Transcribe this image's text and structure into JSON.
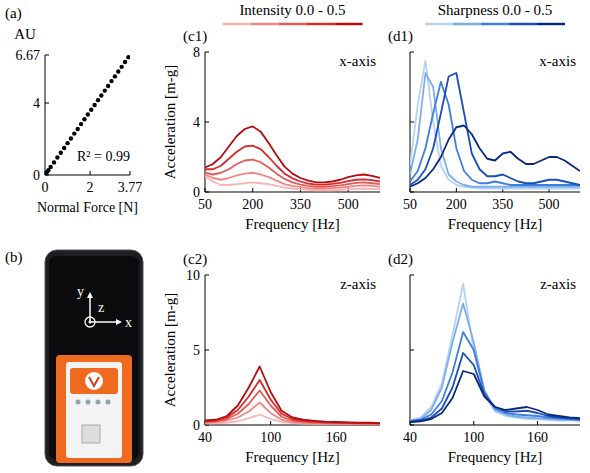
{
  "chart_data": [
    {
      "type": "scatter",
      "panel_label": "(a)",
      "x_label": "Normal Force [N]",
      "y_label": "AU",
      "annotations": [
        "R² = 0.99"
      ],
      "marker": "circle",
      "color": "#000000",
      "x": [
        0.02,
        0.08,
        0.15,
        0.25,
        0.4,
        0.55,
        0.7,
        0.85,
        1.0,
        1.15,
        1.3,
        1.45,
        1.6,
        1.75,
        1.9,
        2.05,
        2.2,
        2.35,
        2.5,
        2.65,
        2.8,
        2.95,
        3.1,
        3.25,
        3.4,
        3.55,
        3.7
      ],
      "values": [
        0.05,
        0.15,
        0.27,
        0.45,
        0.7,
        0.97,
        1.24,
        1.5,
        1.77,
        2.03,
        2.3,
        2.56,
        2.83,
        3.1,
        3.36,
        3.63,
        3.89,
        4.16,
        4.42,
        4.69,
        4.95,
        5.22,
        5.48,
        5.75,
        6.01,
        6.28,
        6.55
      ],
      "xlim": [
        0,
        3.77
      ],
      "xticks": [
        0,
        2,
        3.77
      ],
      "ylim": [
        0,
        6.67
      ],
      "yticks": [
        0,
        4,
        6.67
      ]
    },
    {
      "type": "line",
      "panel_label": "(c1)",
      "subtitle": "Intensity 0.0 - 0.5",
      "title": "x-axis",
      "x_label": "Frequency [Hz]",
      "y_label": "Acceleration [m-g]",
      "x": [
        50,
        75,
        100,
        125,
        150,
        175,
        200,
        225,
        250,
        275,
        300,
        325,
        350,
        375,
        400,
        425,
        450,
        475,
        500,
        525,
        550,
        575,
        600
      ],
      "series": [
        {
          "color": "#f7b4b4",
          "values": [
            0.9,
            0.6,
            0.4,
            0.4,
            0.45,
            0.5,
            0.55,
            0.5,
            0.45,
            0.35,
            0.25,
            0.2,
            0.15,
            0.12,
            0.1,
            0.1,
            0.1,
            0.12,
            0.15,
            0.18,
            0.2,
            0.18,
            0.15
          ]
        },
        {
          "color": "#f08888",
          "values": [
            1.0,
            0.8,
            0.7,
            0.8,
            0.95,
            1.05,
            1.1,
            1.0,
            0.85,
            0.65,
            0.45,
            0.35,
            0.28,
            0.22,
            0.2,
            0.2,
            0.22,
            0.25,
            0.3,
            0.35,
            0.38,
            0.35,
            0.3
          ]
        },
        {
          "color": "#e65a5a",
          "values": [
            1.1,
            1.0,
            1.1,
            1.3,
            1.6,
            1.8,
            1.85,
            1.7,
            1.4,
            1.05,
            0.75,
            0.55,
            0.42,
            0.35,
            0.3,
            0.3,
            0.33,
            0.38,
            0.45,
            0.52,
            0.55,
            0.5,
            0.45
          ]
        },
        {
          "color": "#d42c2c",
          "values": [
            1.3,
            1.3,
            1.5,
            1.9,
            2.3,
            2.6,
            2.65,
            2.45,
            2.0,
            1.5,
            1.05,
            0.78,
            0.6,
            0.48,
            0.42,
            0.42,
            0.46,
            0.52,
            0.62,
            0.7,
            0.72,
            0.68,
            0.6
          ]
        },
        {
          "color": "#b40c10",
          "values": [
            1.4,
            1.6,
            2.0,
            2.6,
            3.2,
            3.6,
            3.75,
            3.45,
            2.8,
            2.1,
            1.45,
            1.05,
            0.8,
            0.65,
            0.55,
            0.55,
            0.6,
            0.7,
            0.85,
            0.95,
            1.0,
            0.92,
            0.8
          ]
        }
      ],
      "xlim": [
        50,
        600
      ],
      "xticks": [
        50,
        200,
        350,
        500
      ],
      "ylim": [
        0,
        8
      ],
      "yticks": [
        0,
        4,
        8
      ]
    },
    {
      "type": "line",
      "panel_label": "(c2)",
      "title": "z-axis",
      "x_label": "Frequency [Hz]",
      "y_label": "Acceleration [m-g]",
      "x": [
        40,
        50,
        60,
        70,
        80,
        90,
        100,
        110,
        120,
        130,
        140,
        150,
        160,
        170,
        180,
        190,
        200
      ],
      "series": [
        {
          "color": "#f7b4b4",
          "values": [
            0.1,
            0.12,
            0.15,
            0.25,
            0.45,
            0.7,
            0.4,
            0.2,
            0.12,
            0.1,
            0.08,
            0.08,
            0.07,
            0.07,
            0.06,
            0.06,
            0.05
          ]
        },
        {
          "color": "#f08888",
          "values": [
            0.15,
            0.2,
            0.3,
            0.5,
            0.9,
            1.5,
            0.8,
            0.35,
            0.2,
            0.15,
            0.12,
            0.1,
            0.1,
            0.09,
            0.08,
            0.08,
            0.07
          ]
        },
        {
          "color": "#e65a5a",
          "values": [
            0.2,
            0.25,
            0.4,
            0.75,
            1.4,
            2.3,
            1.3,
            0.55,
            0.3,
            0.2,
            0.16,
            0.14,
            0.13,
            0.12,
            0.1,
            0.1,
            0.09
          ]
        },
        {
          "color": "#d42c2c",
          "values": [
            0.25,
            0.3,
            0.5,
            1.0,
            1.9,
            3.0,
            1.7,
            0.75,
            0.4,
            0.28,
            0.22,
            0.18,
            0.16,
            0.15,
            0.13,
            0.12,
            0.11
          ]
        },
        {
          "color": "#b40c10",
          "values": [
            0.3,
            0.35,
            0.6,
            1.3,
            2.5,
            3.9,
            2.2,
            0.95,
            0.5,
            0.35,
            0.28,
            0.22,
            0.2,
            0.18,
            0.16,
            0.15,
            0.13
          ]
        }
      ],
      "xlim": [
        40,
        200
      ],
      "xticks": [
        40,
        100,
        160
      ],
      "ylim": [
        0,
        10
      ],
      "yticks": [
        0,
        5,
        10
      ]
    },
    {
      "type": "line",
      "panel_label": "(d1)",
      "subtitle": "Sharpness 0.0 - 0.5",
      "title": "x-axis",
      "x_label": "Frequency [Hz]",
      "tick_labels": "x",
      "x": [
        50,
        75,
        100,
        125,
        150,
        175,
        200,
        225,
        250,
        275,
        300,
        325,
        350,
        375,
        400,
        425,
        450,
        475,
        500,
        525,
        550,
        575,
        600
      ],
      "series": [
        {
          "color": "#b8d2f2",
          "values": [
            1.5,
            5.0,
            7.5,
            4.0,
            1.5,
            0.7,
            0.4,
            0.3,
            0.25,
            0.2,
            0.2,
            0.2,
            0.2,
            0.2,
            0.2,
            0.2,
            0.2,
            0.2,
            0.2,
            0.2,
            0.2,
            0.2,
            0.2
          ]
        },
        {
          "color": "#7eaeea",
          "values": [
            1.0,
            3.0,
            6.8,
            6.0,
            2.5,
            1.0,
            0.6,
            0.4,
            0.3,
            0.3,
            0.3,
            0.3,
            0.3,
            0.3,
            0.3,
            0.3,
            0.3,
            0.3,
            0.3,
            0.3,
            0.3,
            0.3,
            0.3
          ]
        },
        {
          "color": "#3e7edc",
          "values": [
            0.6,
            1.2,
            2.5,
            4.5,
            6.3,
            5.0,
            2.5,
            1.2,
            0.7,
            0.5,
            0.5,
            0.6,
            0.5,
            0.4,
            0.4,
            0.4,
            0.4,
            0.4,
            0.4,
            0.4,
            0.4,
            0.4,
            0.4
          ]
        },
        {
          "color": "#1a4eb8",
          "values": [
            0.4,
            0.7,
            1.3,
            2.5,
            4.5,
            6.6,
            6.8,
            4.5,
            2.2,
            1.3,
            0.9,
            0.9,
            1.0,
            0.8,
            0.6,
            0.5,
            0.5,
            0.6,
            0.7,
            0.7,
            0.6,
            0.5,
            0.4
          ]
        },
        {
          "color": "#0a2a80",
          "values": [
            0.3,
            0.5,
            0.8,
            1.3,
            2.0,
            3.0,
            3.7,
            3.8,
            3.3,
            2.5,
            1.9,
            1.8,
            2.2,
            2.3,
            1.9,
            1.6,
            1.6,
            1.8,
            2.0,
            2.0,
            1.8,
            1.5,
            1.2
          ]
        }
      ],
      "xlim": [
        50,
        600
      ],
      "xticks": [
        50,
        200,
        350,
        500
      ],
      "ylim": [
        0,
        8
      ],
      "yticks": [
        0,
        4,
        8
      ]
    },
    {
      "type": "line",
      "panel_label": "(d2)",
      "title": "z-axis",
      "x_label": "Frequency [Hz]",
      "tick_labels": "x",
      "x": [
        40,
        50,
        60,
        70,
        80,
        90,
        100,
        110,
        120,
        130,
        140,
        150,
        160,
        170,
        180,
        190,
        200
      ],
      "series": [
        {
          "color": "#b8d2f2",
          "values": [
            0.3,
            0.5,
            1.2,
            2.8,
            6.0,
            9.4,
            5.0,
            2.0,
            0.9,
            0.6,
            0.5,
            0.4,
            0.4,
            0.35,
            0.3,
            0.3,
            0.3
          ]
        },
        {
          "color": "#7eaeea",
          "values": [
            0.3,
            0.4,
            1.0,
            2.5,
            5.5,
            8.1,
            5.5,
            2.3,
            1.0,
            0.7,
            0.55,
            0.5,
            0.45,
            0.4,
            0.35,
            0.35,
            0.3
          ]
        },
        {
          "color": "#3e7edc",
          "values": [
            0.25,
            0.35,
            0.7,
            1.6,
            3.5,
            6.2,
            5.0,
            2.2,
            1.1,
            0.8,
            0.7,
            0.65,
            0.6,
            0.5,
            0.45,
            0.4,
            0.35
          ]
        },
        {
          "color": "#1a4eb8",
          "values": [
            0.2,
            0.3,
            0.5,
            1.1,
            2.5,
            4.8,
            4.0,
            2.0,
            1.2,
            0.9,
            0.9,
            0.95,
            0.8,
            0.6,
            0.5,
            0.45,
            0.4
          ]
        },
        {
          "color": "#0a2a80",
          "values": [
            0.2,
            0.25,
            0.4,
            0.8,
            1.8,
            3.6,
            3.4,
            1.9,
            1.2,
            1.0,
            1.1,
            1.2,
            1.0,
            0.7,
            0.6,
            0.5,
            0.45
          ]
        }
      ],
      "xlim": [
        40,
        200
      ],
      "xticks": [
        40,
        100,
        160
      ],
      "ylim": [
        0,
        10
      ],
      "yticks": [
        0,
        5,
        10
      ]
    }
  ],
  "diagram": {
    "panel_label": "(b)",
    "axis_labels": [
      "x",
      "y",
      "z"
    ]
  }
}
